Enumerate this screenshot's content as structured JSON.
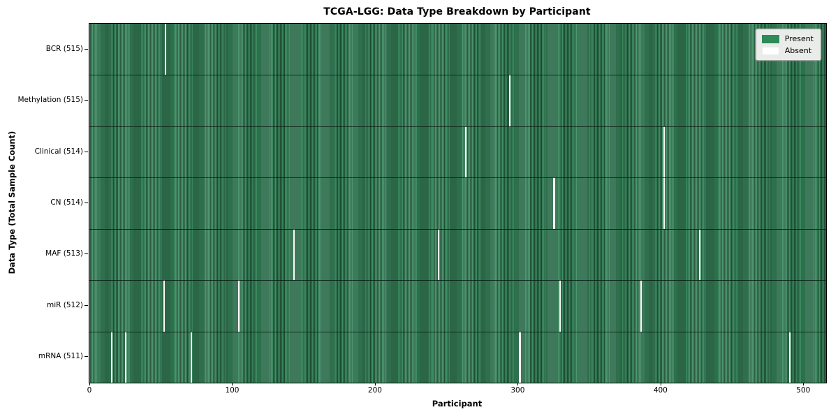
{
  "colors": {
    "present": "#2e8b57",
    "stripe_light": "#3e8f63",
    "stripe_dark": "#1f4f37",
    "absent": "#fbfbf9",
    "legend_bg": "#e9ece9",
    "plot_border": "#000000"
  },
  "chart_data": {
    "type": "heatmap",
    "title": "TCGA-LGG: Data Type Breakdown by Participant",
    "xlabel": "Participant",
    "ylabel": "Data Type (Total Sample Count)",
    "legend_entries": [
      "Present",
      "Absent"
    ],
    "legend_position": "upper right",
    "grid": false,
    "n_participants": 516,
    "xlim": [
      -0.5,
      515.5
    ],
    "x_ticks": [
      0,
      100,
      200,
      300,
      400,
      500
    ],
    "rows": [
      {
        "key": "bcr",
        "label": "BCR (515)",
        "data_type": "BCR",
        "present_count": 515,
        "absent_participants": [
          53
        ]
      },
      {
        "key": "methylation",
        "label": "Methylation (515)",
        "data_type": "Methylation",
        "present_count": 515,
        "absent_participants": [
          294
        ]
      },
      {
        "key": "clinical",
        "label": "Clinical (514)",
        "data_type": "Clinical",
        "present_count": 514,
        "absent_participants": [
          263,
          402
        ]
      },
      {
        "key": "cn",
        "label": "CN (514)",
        "data_type": "CN",
        "present_count": 514,
        "absent_participants": [
          325,
          402
        ]
      },
      {
        "key": "maf",
        "label": "MAF (513)",
        "data_type": "MAF",
        "present_count": 513,
        "absent_participants": [
          143,
          244,
          427
        ]
      },
      {
        "key": "mir",
        "label": "miR (512)",
        "data_type": "miR",
        "present_count": 512,
        "absent_participants": [
          52,
          104,
          329,
          386
        ]
      },
      {
        "key": "mrna",
        "label": "mRNA (511)",
        "data_type": "mRNA",
        "present_count": 511,
        "absent_participants": [
          15,
          25,
          71,
          301,
          490
        ]
      }
    ]
  }
}
